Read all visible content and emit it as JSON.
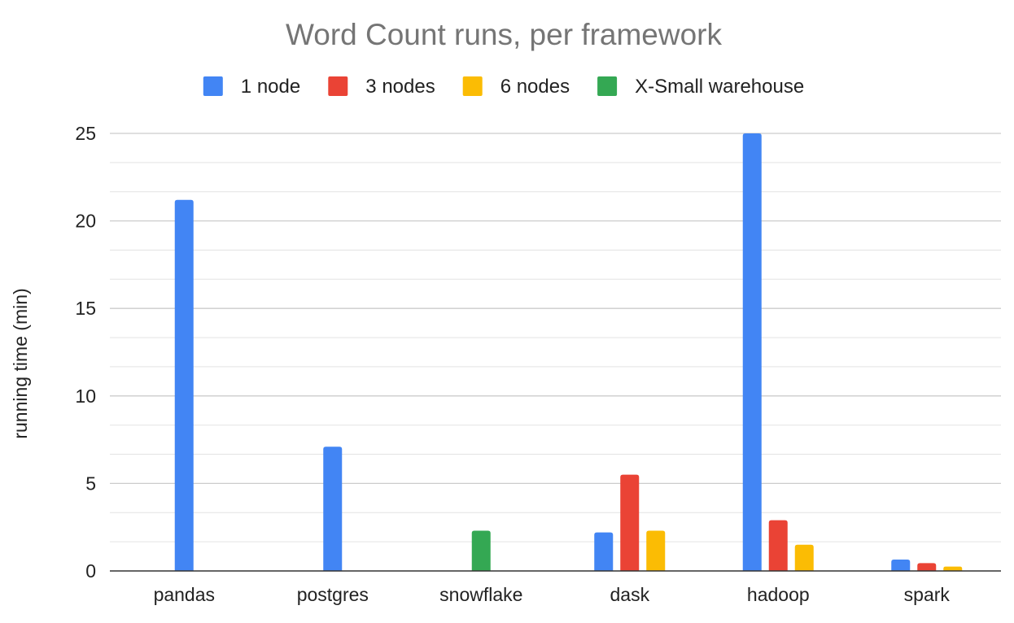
{
  "chart_data": {
    "type": "bar",
    "title": "Word Count runs, per framework",
    "xlabel": "",
    "ylabel": "running time (min)",
    "categories": [
      "pandas",
      "postgres",
      "snowflake",
      "dask",
      "hadoop",
      "spark"
    ],
    "series": [
      {
        "name": "1 node",
        "color": "#4285F4",
        "values": [
          21.2,
          7.1,
          null,
          2.2,
          25.0,
          0.65
        ]
      },
      {
        "name": "3 nodes",
        "color": "#EA4335",
        "values": [
          null,
          null,
          null,
          5.5,
          2.9,
          0.45
        ]
      },
      {
        "name": "6 nodes",
        "color": "#FBBC04",
        "values": [
          null,
          null,
          null,
          2.3,
          1.5,
          0.25
        ]
      },
      {
        "name": "X-Small warehouse",
        "color": "#34A853",
        "values": [
          null,
          null,
          2.3,
          null,
          null,
          null
        ]
      }
    ],
    "ylim": [
      0,
      25
    ],
    "yticks": [
      0,
      5,
      10,
      15,
      20,
      25
    ],
    "minor_gridlines": true,
    "grid": true,
    "legend_position": "top-center"
  }
}
